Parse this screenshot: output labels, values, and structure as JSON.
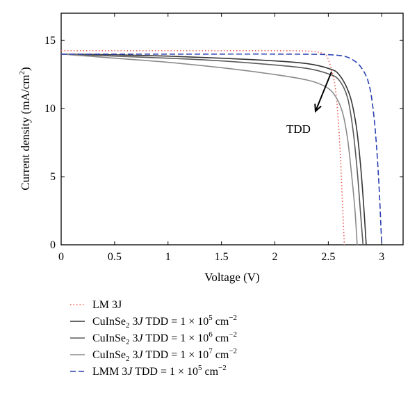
{
  "chart_data": {
    "type": "line",
    "xlabel": "Voltage (V)",
    "ylabel": "Current density (mA/cm²)",
    "xlim": [
      0,
      3.2
    ],
    "ylim": [
      0,
      17
    ],
    "xticks": [
      0,
      0.5,
      1,
      1.5,
      2,
      2.5,
      3
    ],
    "xtick_labels": [
      "0",
      "0.5",
      "1",
      "1.5",
      "2",
      "2.5",
      "3"
    ],
    "yticks": [
      0,
      5,
      10,
      15
    ],
    "ytick_labels": [
      "0",
      "5",
      "10",
      "15"
    ],
    "grid": false,
    "legend_position": "below",
    "annotation": {
      "text": "TDD",
      "arrow_from": [
        2.53,
        12.7
      ],
      "arrow_to": [
        2.38,
        9.8
      ]
    },
    "series": [
      {
        "name": "LM 3J",
        "color": "#e8564d",
        "dash": "dotted",
        "x": [
          0,
          0.5,
          1.0,
          1.5,
          2.0,
          2.3,
          2.45,
          2.5,
          2.55,
          2.58,
          2.61,
          2.63,
          2.65
        ],
        "y": [
          14.25,
          14.25,
          14.25,
          14.25,
          14.25,
          14.22,
          14.05,
          13.6,
          12.2,
          10.5,
          7.0,
          3.5,
          0
        ]
      },
      {
        "name_parts": [
          "CuInSe",
          "2",
          " 3",
          "J",
          " TDD = 1 × 10",
          "5",
          " cm",
          "−2"
        ],
        "color": "#333333",
        "dash": "solid",
        "x": [
          0,
          0.5,
          1.0,
          1.5,
          2.0,
          2.3,
          2.5,
          2.6,
          2.7,
          2.76,
          2.8,
          2.83,
          2.855
        ],
        "y": [
          14.0,
          13.95,
          13.85,
          13.7,
          13.5,
          13.3,
          12.95,
          12.5,
          11.0,
          8.8,
          6.0,
          3.0,
          0
        ]
      },
      {
        "name_parts": [
          "CuInSe",
          "2",
          " 3",
          "J",
          " TDD = 1 × 10",
          "6",
          " cm",
          "−2"
        ],
        "color": "#5a5a5a",
        "dash": "solid",
        "x": [
          0,
          0.5,
          1.0,
          1.5,
          2.0,
          2.3,
          2.5,
          2.6,
          2.68,
          2.73,
          2.77,
          2.8,
          2.825
        ],
        "y": [
          14.0,
          13.85,
          13.7,
          13.5,
          13.2,
          12.95,
          12.55,
          12.1,
          10.8,
          8.5,
          5.5,
          2.5,
          0
        ]
      },
      {
        "name_parts": [
          "CuInSe",
          "2",
          " 3",
          "J",
          " TDD = 1 × 10",
          "7",
          " cm",
          "−2"
        ],
        "color": "#8a8a8a",
        "dash": "solid",
        "x": [
          0,
          0.5,
          1.0,
          1.5,
          2.0,
          2.3,
          2.45,
          2.55,
          2.63,
          2.68,
          2.72,
          2.75,
          2.77
        ],
        "y": [
          14.0,
          13.7,
          13.4,
          13.0,
          12.5,
          12.1,
          11.7,
          11.1,
          9.8,
          7.8,
          5.0,
          2.5,
          0
        ]
      },
      {
        "name_parts": [
          "LMM 3",
          "J",
          " TDD = 1 × 10",
          "5",
          " cm",
          "−2"
        ],
        "color": "#2a3fb0",
        "dash": "dashed",
        "x": [
          0,
          0.5,
          1.0,
          1.5,
          2.0,
          2.4,
          2.6,
          2.7,
          2.8,
          2.88,
          2.93,
          2.97,
          3.0
        ],
        "y": [
          14.0,
          14.0,
          14.0,
          14.0,
          14.0,
          13.98,
          13.9,
          13.7,
          13.1,
          11.8,
          9.2,
          5.0,
          0
        ]
      }
    ]
  }
}
